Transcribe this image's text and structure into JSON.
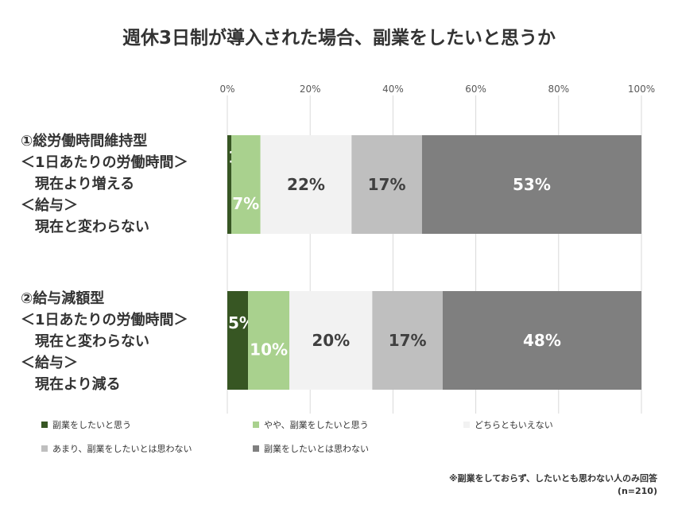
{
  "chart_data": {
    "type": "bar",
    "orientation": "horizontal",
    "stacked": true,
    "title": "週休3日制が導入された場合、副業をしたいと思うか",
    "xlim": [
      0,
      100
    ],
    "x_ticks": [
      "0%",
      "20%",
      "40%",
      "60%",
      "80%",
      "100%"
    ],
    "grid": true,
    "legend_position": "bottom",
    "categories": [
      {
        "lines": [
          "①総労働時間維持型",
          "＜1日あたりの労働時間＞",
          "　現在より増える",
          "＜給与＞",
          "　現在と変わらない"
        ]
      },
      {
        "lines": [
          "②給与減額型",
          "＜1日あたりの労働時間＞",
          "　現在と変わらない",
          "＜給与＞",
          "　現在より減る"
        ]
      }
    ],
    "series": [
      {
        "name": "副業をしたいと思う",
        "color": "#375623",
        "values": [
          1,
          5
        ],
        "labels": [
          "1%",
          "5%"
        ]
      },
      {
        "name": "やや、副業をしたいと思う",
        "color": "#a9d18e",
        "values": [
          7,
          10
        ],
        "labels": [
          "7%",
          "10%"
        ]
      },
      {
        "name": "どちらともいえない",
        "color": "#f2f2f2",
        "values": [
          22,
          20
        ],
        "labels": [
          "22%",
          "20%"
        ]
      },
      {
        "name": "あまり、副業をしたいとは思わない",
        "color": "#bfbfbf",
        "values": [
          17,
          17
        ],
        "labels": [
          "17%",
          "17%"
        ]
      },
      {
        "name": "副業をしたいとは思わない",
        "color": "#7f7f7f",
        "values": [
          53,
          48
        ],
        "labels": [
          "53%",
          "48%"
        ]
      }
    ]
  },
  "footnote": {
    "line1": "※副業をしておらず、したいとも思わない人のみ回答",
    "line2": "(n=210)"
  }
}
